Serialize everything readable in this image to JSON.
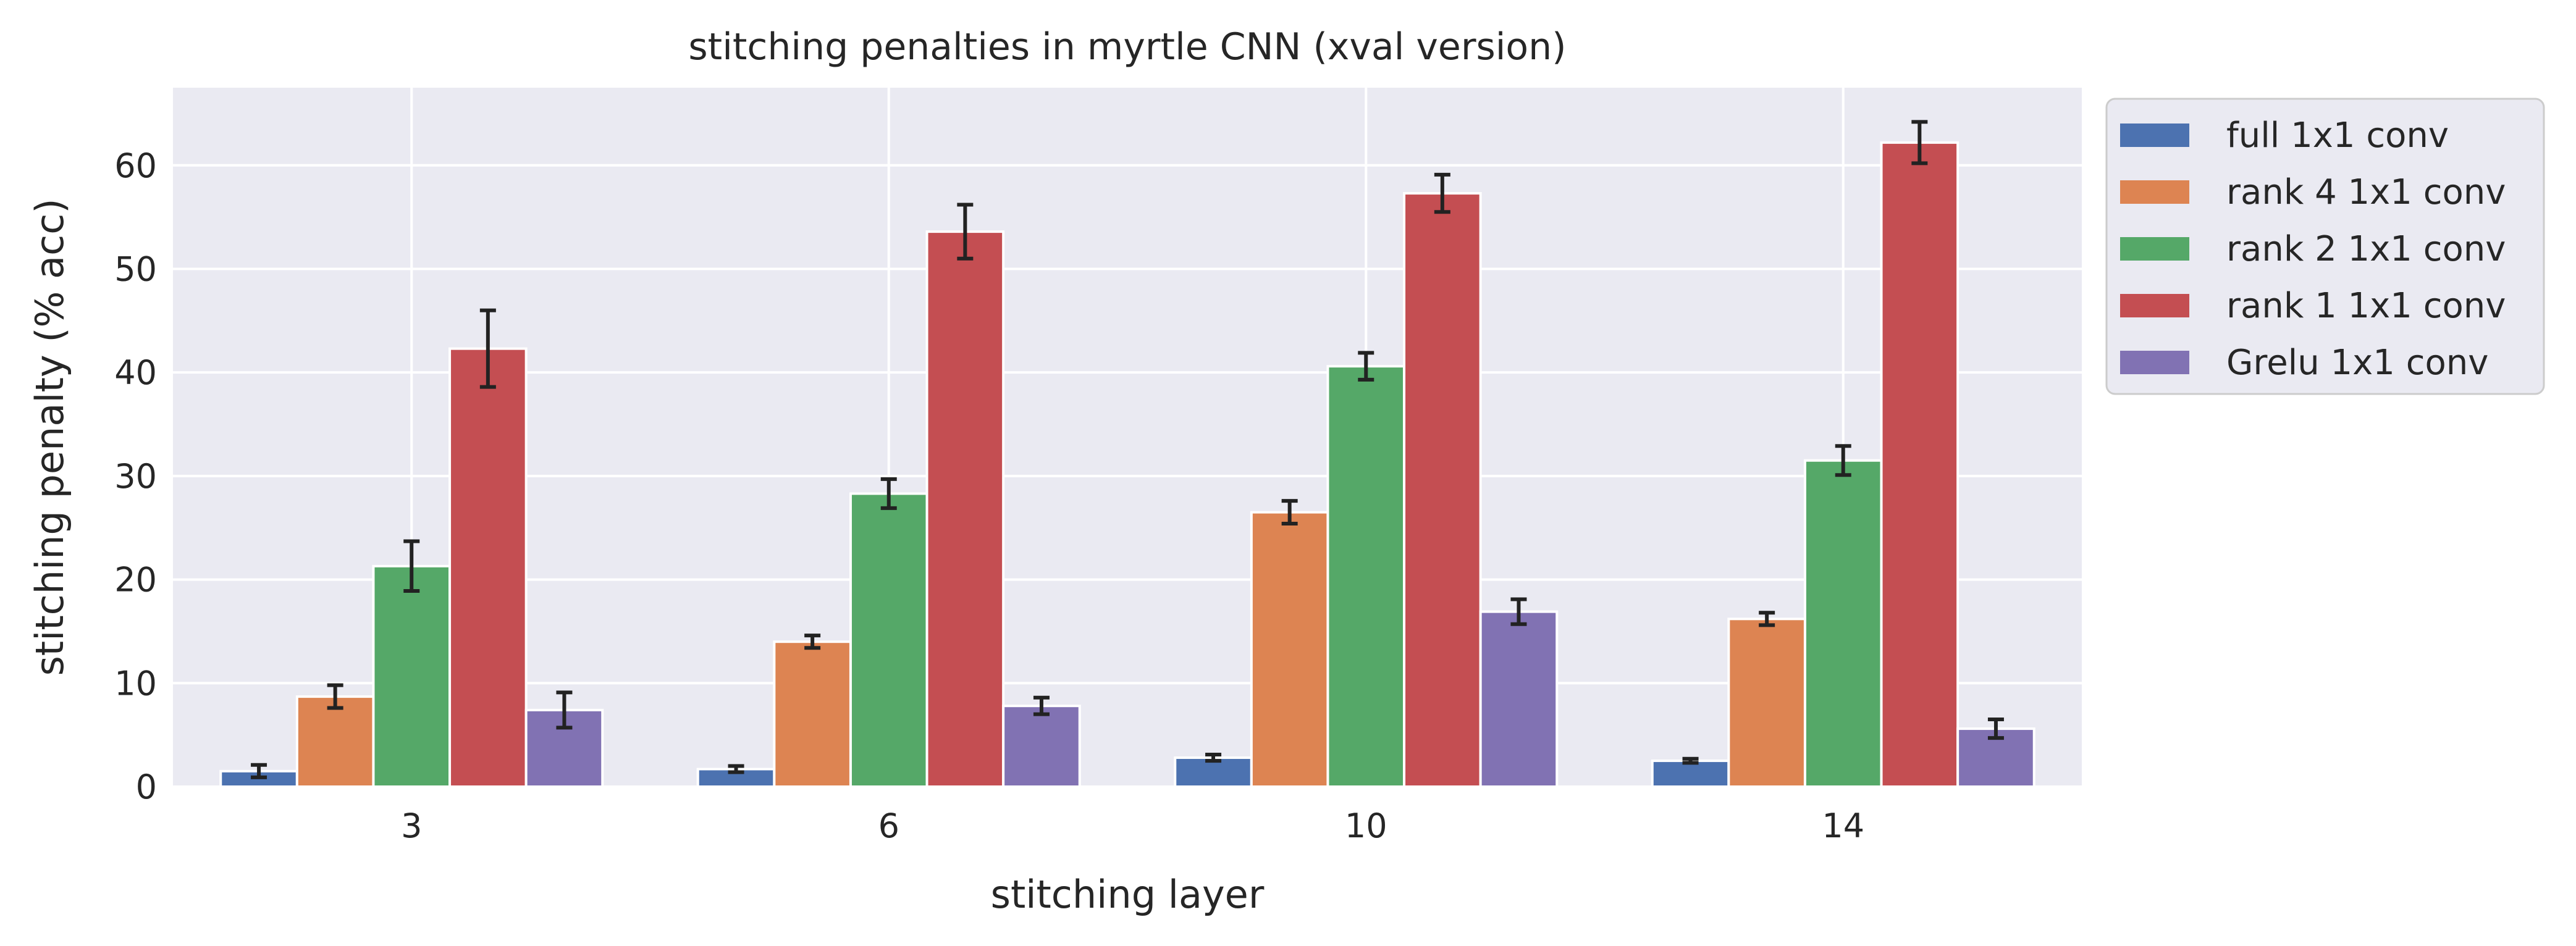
{
  "chart_data": {
    "type": "bar",
    "title": "stitching penalties in myrtle CNN (xval version)",
    "xlabel": "stitching layer",
    "ylabel": "stitching penalty (% acc)",
    "categories": [
      "3",
      "6",
      "10",
      "14"
    ],
    "ylim": [
      0,
      67.5
    ],
    "yticks": [
      0,
      10,
      20,
      30,
      40,
      50,
      60
    ],
    "grid": true,
    "legend_position": "outside-top-right",
    "error_bars": true,
    "series": [
      {
        "name": "full 1x1 conv",
        "color": "#4c72b0",
        "values": [
          1.5,
          1.7,
          2.8,
          2.5
        ],
        "errors": [
          0.6,
          0.3,
          0.3,
          0.2
        ]
      },
      {
        "name": "rank 4 1x1 conv",
        "color": "#dd8452",
        "values": [
          8.7,
          14.0,
          26.5,
          16.2
        ],
        "errors": [
          1.1,
          0.6,
          1.1,
          0.6
        ]
      },
      {
        "name": "rank 2 1x1 conv",
        "color": "#55a868",
        "values": [
          21.3,
          28.3,
          40.6,
          31.5
        ],
        "errors": [
          2.4,
          1.4,
          1.3,
          1.4
        ]
      },
      {
        "name": "rank 1 1x1 conv",
        "color": "#c44e52",
        "values": [
          42.3,
          53.6,
          57.3,
          62.2
        ],
        "errors": [
          3.7,
          2.6,
          1.8,
          2.0
        ]
      },
      {
        "name": "Grelu 1x1 conv",
        "color": "#8172b3",
        "values": [
          7.4,
          7.8,
          16.9,
          5.6
        ],
        "errors": [
          1.7,
          0.8,
          1.2,
          0.9
        ]
      }
    ]
  }
}
